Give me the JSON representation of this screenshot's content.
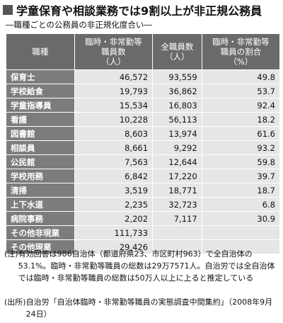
{
  "header": {
    "title": "学童保育や相談業務では9割以上が非正規公務員",
    "subtitle": "―職種ごとの公務員の非正規化度合い―"
  },
  "table": {
    "header": [
      "職種",
      "臨時・非常勤等\n職員数\n（人）",
      "全職員数\n（人）",
      "臨時・非常勤等\n職員の割合\n（%）"
    ],
    "rows": [
      [
        "保育士",
        "46,572",
        "93,559",
        "49.8"
      ],
      [
        "学校給食",
        "19,793",
        "36,862",
        "53.7"
      ],
      [
        "学童指導員",
        "15,534",
        "16,803",
        "92.4"
      ],
      [
        "看護",
        "10,228",
        "56,113",
        "18.2"
      ],
      [
        "図書館",
        "8,603",
        "13,974",
        "61.6"
      ],
      [
        "相談員",
        "8,661",
        "9,292",
        "93.2"
      ],
      [
        "公民館",
        "7,563",
        "12,644",
        "59.8"
      ],
      [
        "学校用務",
        "6,842",
        "17,220",
        "39.7"
      ],
      [
        "清掃",
        "3,519",
        "18,771",
        "18.7"
      ],
      [
        "上下水道",
        "2,235",
        "32,723",
        "6.8"
      ],
      [
        "病院事務",
        "2,202",
        "7,117",
        "30.9"
      ],
      [
        "その他非現業",
        "111,733"
      ],
      [
        "その他現業",
        "29,426"
      ]
    ]
  },
  "notes": {
    "note_label": "(注)",
    "note": "有効回答は986自治体（都道府県23、市区町村963）で全自治体の53.1%。臨時・非常勤等職員の総数は29万7571人。自治労では全自治体では臨時・非常勤等職員の総数は50万人以上に上ると推定している",
    "source_label": "(出所)",
    "source": "自治労「自治体臨時・非常勤等職員の実態調査中間集約」（2008年9月24日）"
  }
}
